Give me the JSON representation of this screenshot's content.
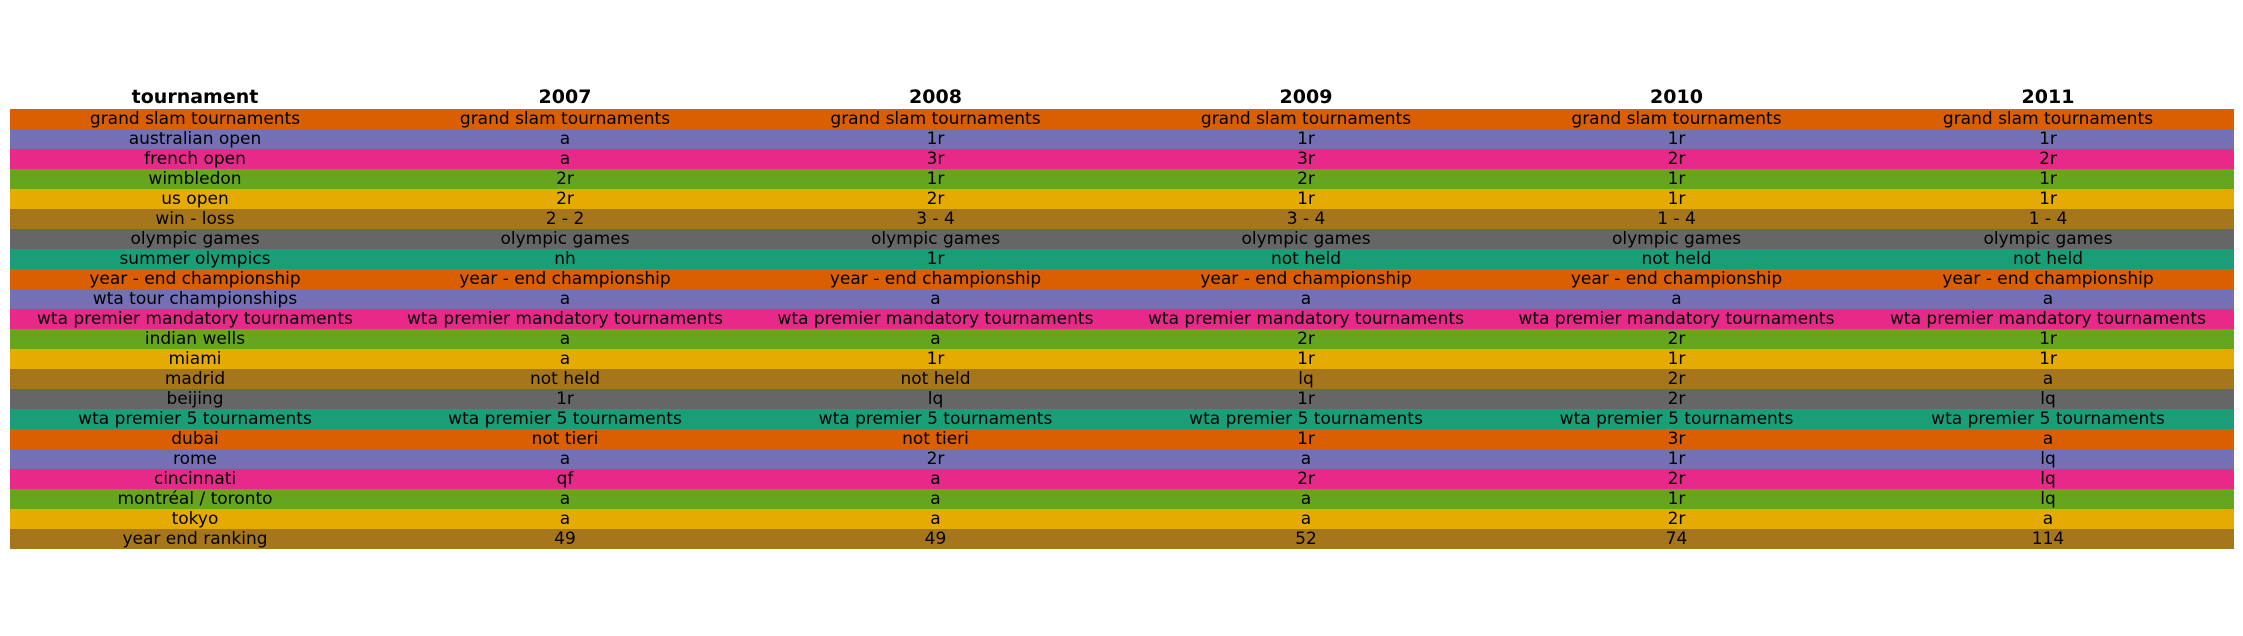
{
  "chart_data": {
    "type": "table",
    "columns": [
      "tournament",
      "2007",
      "2008",
      "2009",
      "2010",
      "2011"
    ],
    "row_colors": [
      "#d95f02",
      "#7570b3",
      "#e7298a",
      "#66a61e",
      "#e6ab02",
      "#a6761d",
      "#666666",
      "#1b9e77"
    ],
    "rows": [
      [
        "grand slam tournaments",
        "grand slam tournaments",
        "grand slam tournaments",
        "grand slam tournaments",
        "grand slam tournaments",
        "grand slam tournaments"
      ],
      [
        "australian open",
        "a",
        "1r",
        "1r",
        "1r",
        "1r"
      ],
      [
        "french open",
        "a",
        "3r",
        "3r",
        "2r",
        "2r"
      ],
      [
        "wimbledon",
        "2r",
        "1r",
        "2r",
        "1r",
        "1r"
      ],
      [
        "us open",
        "2r",
        "2r",
        "1r",
        "1r",
        "1r"
      ],
      [
        "win - loss",
        "2 - 2",
        "3 - 4",
        "3 - 4",
        "1 - 4",
        "1 - 4"
      ],
      [
        "olympic games",
        "olympic games",
        "olympic games",
        "olympic games",
        "olympic games",
        "olympic games"
      ],
      [
        "summer olympics",
        "nh",
        "1r",
        "not held",
        "not held",
        "not held"
      ],
      [
        "year - end championship",
        "year - end championship",
        "year - end championship",
        "year - end championship",
        "year - end championship",
        "year - end championship"
      ],
      [
        "wta tour championships",
        "a",
        "a",
        "a",
        "a",
        "a"
      ],
      [
        "wta premier mandatory tournaments",
        "wta premier mandatory tournaments",
        "wta premier mandatory tournaments",
        "wta premier mandatory tournaments",
        "wta premier mandatory tournaments",
        "wta premier mandatory tournaments"
      ],
      [
        "indian wells",
        "a",
        "a",
        "2r",
        "2r",
        "1r"
      ],
      [
        "miami",
        "a",
        "1r",
        "1r",
        "1r",
        "1r"
      ],
      [
        "madrid",
        "not held",
        "not held",
        "lq",
        "2r",
        "a"
      ],
      [
        "beijing",
        "1r",
        "lq",
        "1r",
        "2r",
        "lq"
      ],
      [
        "wta premier 5 tournaments",
        "wta premier 5 tournaments",
        "wta premier 5 tournaments",
        "wta premier 5 tournaments",
        "wta premier 5 tournaments",
        "wta premier 5 tournaments"
      ],
      [
        "dubai",
        "not tieri",
        "not tieri",
        "1r",
        "3r",
        "a"
      ],
      [
        "rome",
        "a",
        "2r",
        "a",
        "1r",
        "lq"
      ],
      [
        "cincinnati",
        "qf",
        "a",
        "2r",
        "2r",
        "lq"
      ],
      [
        "montréal / toronto",
        "a",
        "a",
        "a",
        "1r",
        "lq"
      ],
      [
        "tokyo",
        "a",
        "a",
        "a",
        "2r",
        "a"
      ],
      [
        "year end ranking",
        "49",
        "49",
        "52",
        "74",
        "114"
      ]
    ]
  }
}
